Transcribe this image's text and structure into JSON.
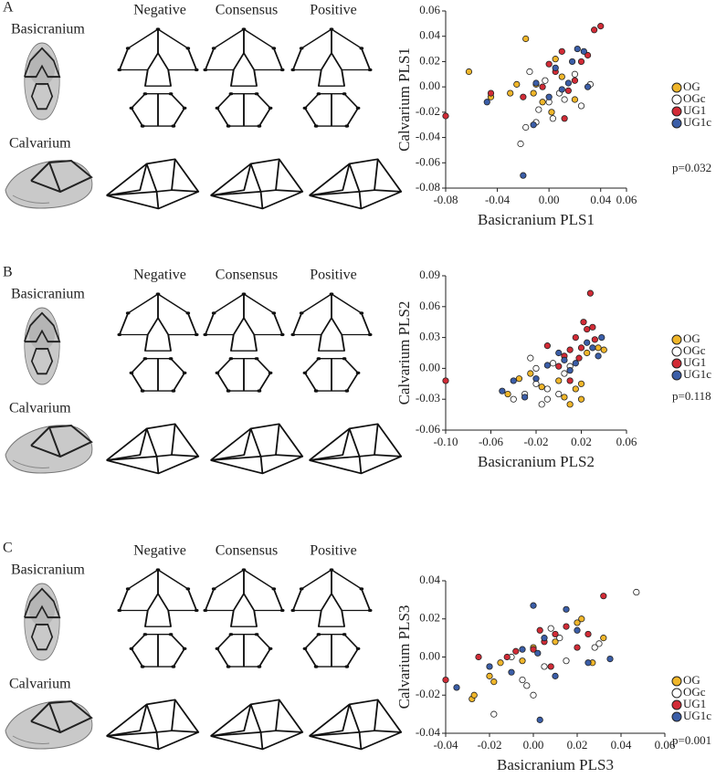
{
  "panels": [
    {
      "label": "A",
      "columns": [
        "Negative",
        "Consensus",
        "Positive"
      ],
      "rows": [
        "Basicranium",
        "Calvarium"
      ]
    },
    {
      "label": "B",
      "columns": [
        "Negative",
        "Consensus",
        "Positive"
      ],
      "rows": [
        "Basicranium",
        "Calvarium"
      ]
    },
    {
      "label": "C",
      "columns": [
        "Negative",
        "Consensus",
        "Positive"
      ],
      "rows": [
        "Basicranium",
        "Calvarium"
      ]
    }
  ],
  "chart_data": [
    {
      "type": "scatter",
      "xlabel": "Basicranium PLS1",
      "ylabel": "Calvarium PLS1",
      "annotation": "p=0.032",
      "xlim": [
        -0.08,
        0.06
      ],
      "ylim": [
        -0.08,
        0.06
      ],
      "xticks": [
        -0.08,
        -0.04,
        {
          "value": 0,
          "label": "0.00"
        },
        0.04,
        0.06
      ],
      "yticks": [
        -0.08,
        -0.06,
        -0.04,
        -0.02,
        {
          "value": 0,
          "label": "0.00"
        },
        0.02,
        0.04,
        0.06
      ],
      "series": [
        {
          "name": "OG",
          "color": "#f0b62a",
          "x": [
            -0.062,
            -0.045,
            -0.025,
            -0.018,
            -0.012,
            -0.01,
            -0.005,
            0.005,
            0.01,
            0.02,
            -0.03,
            0.002
          ],
          "values": [
            0.012,
            -0.008,
            0.002,
            0.038,
            -0.005,
            0.002,
            -0.012,
            0.022,
            0.008,
            -0.01,
            -0.005,
            -0.02
          ]
        },
        {
          "name": "OGc",
          "color": "#ffffff",
          "x": [
            -0.022,
            -0.018,
            -0.015,
            -0.008,
            -0.003,
            0.0,
            0.003,
            0.008,
            0.012,
            0.02,
            0.032,
            0.025,
            -0.01
          ],
          "values": [
            -0.045,
            -0.032,
            0.012,
            -0.018,
            0.005,
            -0.012,
            -0.025,
            -0.005,
            -0.01,
            0.01,
            0.002,
            -0.015,
            -0.028
          ]
        },
        {
          "name": "UG1",
          "color": "#d22b36",
          "x": [
            -0.08,
            -0.045,
            -0.02,
            -0.005,
            0.0,
            0.005,
            0.01,
            0.015,
            0.02,
            0.025,
            0.035,
            0.04,
            0.012,
            0.03
          ],
          "values": [
            -0.023,
            -0.005,
            -0.008,
            0.0,
            0.018,
            0.012,
            0.028,
            -0.003,
            0.005,
            0.02,
            0.045,
            0.048,
            -0.025,
            0.025
          ]
        },
        {
          "name": "UG1c",
          "color": "#3b5ea8",
          "x": [
            -0.048,
            -0.02,
            -0.012,
            -0.01,
            0.0,
            0.005,
            0.01,
            0.018,
            0.022,
            0.027,
            0.03,
            0.015
          ],
          "values": [
            -0.012,
            -0.07,
            -0.03,
            0.003,
            -0.008,
            0.015,
            -0.002,
            0.02,
            0.03,
            0.028,
            0.0,
            0.003
          ]
        }
      ]
    },
    {
      "type": "scatter",
      "xlabel": "Basicranium PLS2",
      "ylabel": "Calvarium PLS2",
      "annotation": "p=0.118",
      "xlim": [
        -0.1,
        0.06
      ],
      "ylim": [
        -0.06,
        0.09
      ],
      "xticks": [
        {
          "value": -0.1,
          "label": "-0.10"
        },
        -0.06,
        -0.02,
        0.02,
        0.06
      ],
      "yticks": [
        -0.06,
        -0.03,
        {
          "value": 0,
          "label": "0.00"
        },
        0.03,
        0.06,
        0.09
      ],
      "series": [
        {
          "name": "OG",
          "color": "#f0b62a",
          "x": [
            -0.045,
            -0.035,
            -0.025,
            -0.015,
            0.0,
            0.005,
            0.01,
            0.015,
            0.02,
            0.025,
            0.035,
            0.04,
            0.02
          ],
          "values": [
            -0.025,
            -0.01,
            -0.005,
            -0.018,
            -0.012,
            -0.028,
            -0.035,
            -0.02,
            -0.03,
            0.015,
            0.02,
            0.018,
            -0.015
          ]
        },
        {
          "name": "OGc",
          "color": "#ffffff",
          "x": [
            -0.04,
            -0.03,
            -0.025,
            -0.02,
            -0.015,
            -0.01,
            -0.005,
            0.0,
            -0.02,
            0.005,
            -0.01,
            0.01
          ],
          "values": [
            -0.03,
            -0.025,
            0.01,
            -0.015,
            -0.035,
            -0.02,
            0.005,
            -0.025,
            0.0,
            -0.005,
            -0.03,
            0.002
          ]
        },
        {
          "name": "UG1",
          "color": "#d22b36",
          "x": [
            -0.1,
            -0.01,
            0.0,
            0.005,
            0.01,
            0.015,
            0.02,
            0.022,
            0.025,
            0.028,
            0.03,
            0.032,
            0.018,
            0.01
          ],
          "values": [
            -0.012,
            0.022,
            0.002,
            0.012,
            0.018,
            0.03,
            0.02,
            0.045,
            0.038,
            0.073,
            0.04,
            0.028,
            0.01,
            -0.012
          ]
        },
        {
          "name": "UG1c",
          "color": "#3b5ea8",
          "x": [
            -0.05,
            -0.04,
            -0.03,
            -0.02,
            -0.01,
            0.0,
            0.005,
            0.01,
            0.015,
            0.025,
            0.03,
            0.038,
            0.035
          ],
          "values": [
            -0.022,
            -0.012,
            -0.028,
            -0.01,
            0.003,
            0.015,
            0.008,
            -0.002,
            0.005,
            0.025,
            0.02,
            0.03,
            0.012
          ]
        }
      ]
    },
    {
      "type": "scatter",
      "xlabel": "Basicranium PLS3",
      "ylabel": "Calvarium PLS3",
      "annotation": "p=0.001",
      "xlim": [
        -0.04,
        0.06
      ],
      "ylim": [
        -0.04,
        0.04
      ],
      "xticks": [
        -0.04,
        -0.02,
        {
          "value": 0,
          "label": "0.00"
        },
        0.02,
        0.04,
        0.06
      ],
      "yticks": [
        -0.04,
        -0.02,
        {
          "value": 0,
          "label": "0.00"
        },
        0.02,
        0.04
      ],
      "series": [
        {
          "name": "OG",
          "color": "#f0b62a",
          "x": [
            -0.028,
            -0.027,
            -0.02,
            -0.018,
            -0.015,
            -0.005,
            0.0,
            0.01,
            0.02,
            0.022,
            0.027,
            0.032
          ],
          "values": [
            -0.022,
            -0.02,
            -0.01,
            -0.013,
            -0.003,
            -0.002,
            0.005,
            0.008,
            0.018,
            0.02,
            -0.003,
            0.01
          ]
        },
        {
          "name": "OGc",
          "color": "#ffffff",
          "x": [
            -0.018,
            -0.01,
            -0.005,
            -0.003,
            0.0,
            0.005,
            0.008,
            0.012,
            0.028,
            0.03,
            0.047,
            0.015
          ],
          "values": [
            -0.03,
            0.0,
            -0.012,
            -0.015,
            -0.02,
            -0.005,
            0.015,
            0.01,
            0.005,
            0.007,
            0.034,
            -0.002
          ]
        },
        {
          "name": "UG1",
          "color": "#d22b36",
          "x": [
            -0.04,
            -0.025,
            -0.012,
            -0.008,
            0.0,
            0.005,
            0.01,
            0.015,
            0.02,
            0.025,
            0.032,
            0.008,
            0.003
          ],
          "values": [
            -0.012,
            0.0,
            0.0,
            0.003,
            0.004,
            0.008,
            0.012,
            0.016,
            0.005,
            0.012,
            0.032,
            -0.005,
            0.014
          ]
        },
        {
          "name": "UG1c",
          "color": "#3b5ea8",
          "x": [
            -0.035,
            -0.02,
            -0.01,
            -0.005,
            0.0,
            0.003,
            0.005,
            0.01,
            0.015,
            0.02,
            0.025,
            0.035,
            0.002
          ],
          "values": [
            -0.016,
            -0.005,
            -0.008,
            0.004,
            0.027,
            -0.033,
            0.01,
            -0.01,
            0.025,
            0.014,
            -0.003,
            -0.001,
            0.002
          ]
        }
      ]
    }
  ]
}
